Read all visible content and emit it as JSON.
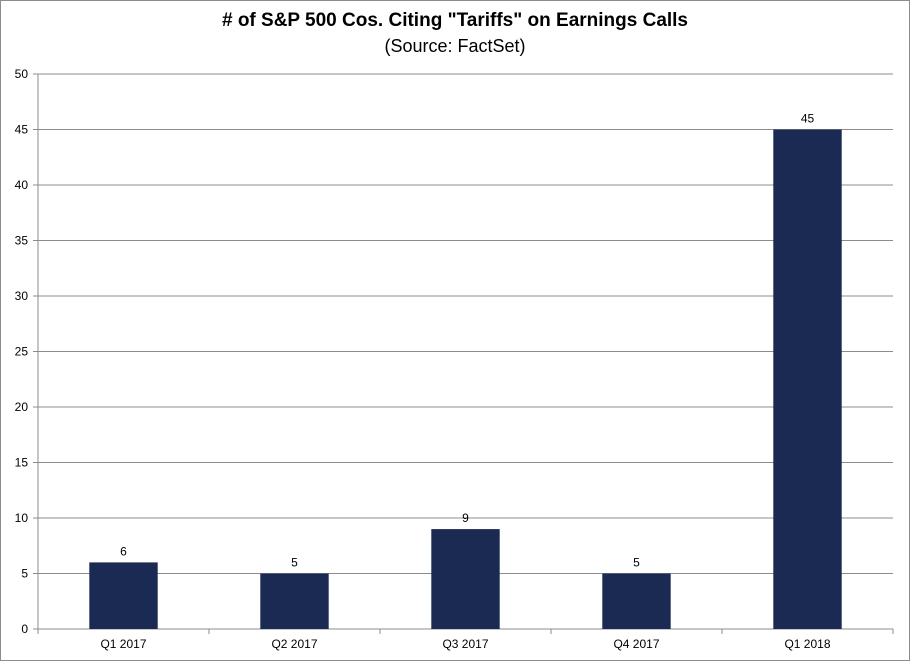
{
  "chart_data": {
    "type": "bar",
    "title": "# of S&P 500 Cos. Citing \"Tariffs\" on Earnings Calls",
    "subtitle": "(Source: FactSet)",
    "categories": [
      "Q1 2017",
      "Q2 2017",
      "Q3 2017",
      "Q4 2017",
      "Q1 2018"
    ],
    "values": [
      6,
      5,
      9,
      5,
      45
    ],
    "data_labels": [
      "6",
      "5",
      "9",
      "5",
      "45"
    ],
    "ylim": [
      0,
      50
    ],
    "yticks": [
      "0",
      "5",
      "10",
      "15",
      "20",
      "25",
      "30",
      "35",
      "40",
      "45",
      "50"
    ],
    "xlabel": "",
    "ylabel": "",
    "grid": true,
    "legend": false,
    "bar_color": "#1b2a53",
    "grid_color": "#8c8c8c"
  }
}
